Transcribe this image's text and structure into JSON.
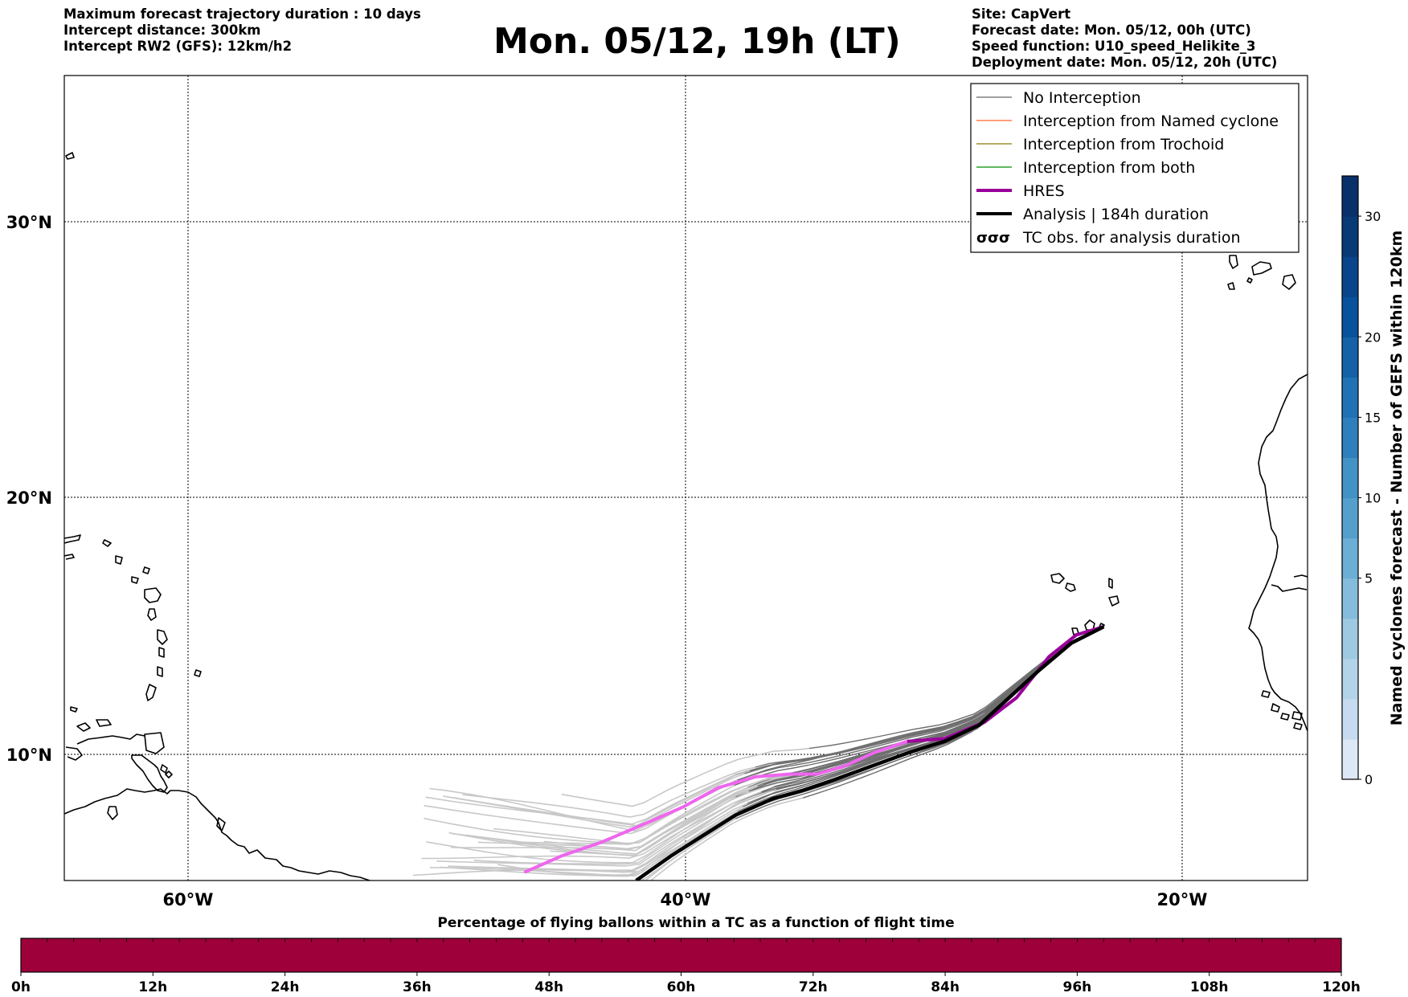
{
  "header": {
    "left_lines": [
      "Maximum forecast trajectory duration : 10 days",
      "Intercept distance: 300km",
      "Intercept RW2 (GFS):  12km/h2"
    ],
    "title": "Mon. 05/12, 19h (LT)",
    "right_lines": [
      "Site: CapVert",
      "Forecast date: Mon. 05/12, 00h (UTC)",
      "Speed function: U10_speed_Helikite_3",
      "Deployment date: Mon. 05/12, 20h (UTC)"
    ]
  },
  "map": {
    "lon_labels": [
      "60°W",
      "40°W",
      "20°W"
    ],
    "lat_labels": [
      "30°N",
      "20°N",
      "10°N"
    ],
    "colors": {
      "coastline": "#000000",
      "no_interception_ensemble": "#c8c8c8",
      "no_interception_recent": "#6e6e6e",
      "hres": "#ee66ee",
      "hres_recent": "#990099",
      "analysis": "#000000"
    }
  },
  "legend": {
    "items": [
      {
        "label": "No Interception",
        "color": "#808080",
        "style": "thin"
      },
      {
        "label": "Interception from Named cyclone",
        "color": "#ff7f50",
        "style": "thin"
      },
      {
        "label": "Interception from Trochoid",
        "color": "#9b8e2e",
        "style": "thin"
      },
      {
        "label": "Interception from both",
        "color": "#2ca02c",
        "style": "thin"
      },
      {
        "label": "HRES",
        "color": "#990099",
        "style": "thick"
      },
      {
        "label": "Analysis | 184h duration",
        "color": "#000000",
        "style": "thick"
      },
      {
        "label": "TC obs. for analysis duration",
        "color": "#000000",
        "style": "symbol"
      }
    ]
  },
  "colorbar_right": {
    "label": "Named cyclones forecast - Number of GEFS within 120km",
    "ticks": [
      "0",
      "5",
      "10",
      "15",
      "20",
      "30"
    ],
    "colors": [
      "#dce8f5",
      "#c6dbef",
      "#b3d3e8",
      "#9ecae1",
      "#85bcdb",
      "#6baed6",
      "#559fcd",
      "#4292c6",
      "#2f7fbc",
      "#2171b5",
      "#1461a8",
      "#08519c",
      "#08458a",
      "#083a75",
      "#08306b"
    ]
  },
  "colorbar_bottom": {
    "title": "Percentage of flying ballons within a TC as a function of flight time",
    "ticks": [
      "0h",
      "12h",
      "24h",
      "36h",
      "48h",
      "60h",
      "72h",
      "84h",
      "96h",
      "108h",
      "120h"
    ],
    "fill_color": "#9e003a"
  },
  "chart_data": {
    "type": "map",
    "projection": "plate carree",
    "extent": {
      "lon": [
        -65,
        -15
      ],
      "lat": [
        5.5,
        35
      ]
    },
    "trajectories": {
      "origin": {
        "lon": -23.2,
        "lat": 14.8
      },
      "analysis": {
        "lon": [
          -23.2,
          -24.5,
          -25.8,
          -27.0,
          -28.2,
          -29.6,
          -31.0,
          -32.5,
          -34.0,
          -35.3,
          -36.5,
          -38.0,
          -39.4,
          -40.6,
          -42.0
        ],
        "lat": [
          14.8,
          14.2,
          13.2,
          12.2,
          11.2,
          10.6,
          10.2,
          9.7,
          9.2,
          8.8,
          8.5,
          7.9,
          7.1,
          6.4,
          5.5
        ]
      },
      "hres": {
        "lon": [
          -23.2,
          -24.3,
          -25.4,
          -26.7,
          -28.0,
          -29.6,
          -31.1,
          -32.4,
          -33.6,
          -34.7,
          -35.8,
          -37.2,
          -38.7,
          -40.1,
          -41.6,
          -43.4,
          -45.0,
          -46.5
        ],
        "lat": [
          14.8,
          14.5,
          13.7,
          12.2,
          11.3,
          10.7,
          10.6,
          10.2,
          9.7,
          9.4,
          9.4,
          9.3,
          8.9,
          8.2,
          7.6,
          6.9,
          6.4,
          5.8
        ]
      },
      "ensemble_count": 30
    }
  }
}
